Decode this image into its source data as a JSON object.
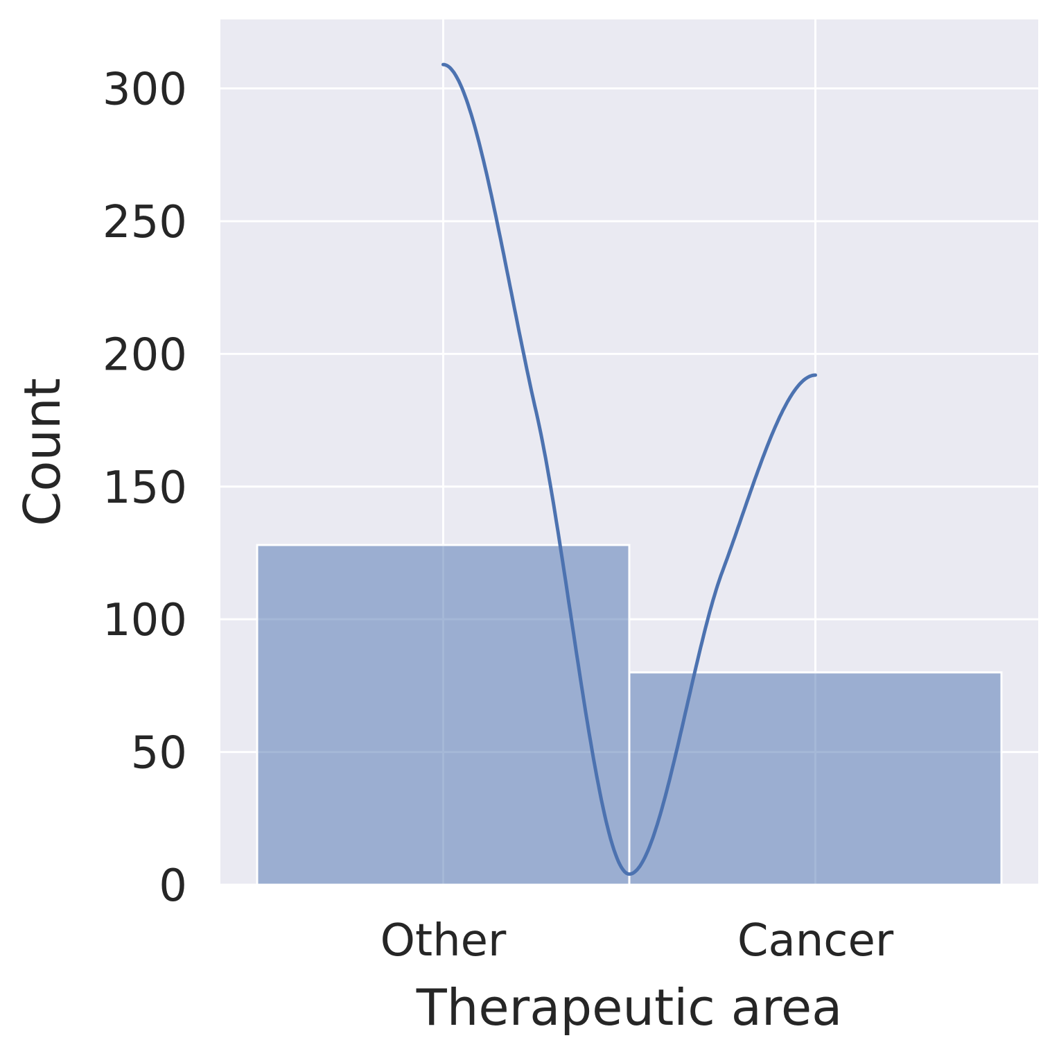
{
  "chart_data": {
    "type": "bar",
    "categories": [
      "Other",
      "Cancer"
    ],
    "values": [
      128,
      80
    ],
    "xlabel": "Therapeutic area",
    "ylabel": "Count",
    "ylim": [
      0,
      326
    ],
    "yticks": [
      0,
      50,
      100,
      150,
      200,
      250,
      300
    ],
    "grid": true,
    "kde": {
      "x": [
        0,
        0.25,
        0.5,
        0.75,
        1
      ],
      "y": [
        309,
        178,
        4,
        118,
        192
      ]
    },
    "colors": {
      "bar": "#4c72b0",
      "line": "#4c72b0",
      "background": "#eaeaf2",
      "grid": "#ffffff"
    }
  }
}
